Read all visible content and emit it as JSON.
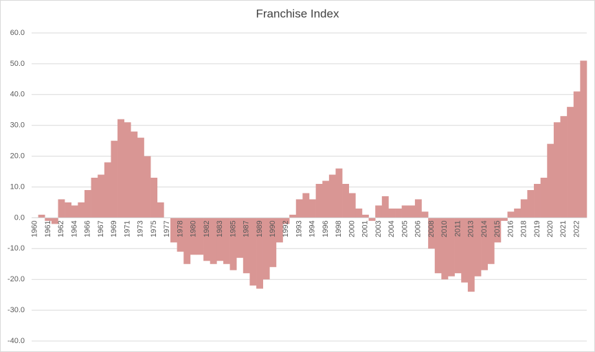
{
  "chart_data": {
    "type": "bar",
    "title": "Franchise Index",
    "categories": [
      "1960",
      null,
      "1961",
      null,
      "1962",
      null,
      "1964",
      null,
      "1966",
      null,
      "1967",
      null,
      "1969",
      null,
      "1971",
      null,
      "1973",
      null,
      "1975",
      null,
      "1977",
      null,
      "1978",
      null,
      "1980",
      null,
      "1982",
      null,
      "1983",
      null,
      "1985",
      null,
      "1987",
      null,
      "1989",
      null,
      "1990",
      null,
      "1992",
      null,
      "1993",
      null,
      "1994",
      null,
      "1996",
      null,
      "1998",
      null,
      "2000",
      null,
      "2001",
      null,
      "2003",
      null,
      "2004",
      null,
      "2005",
      null,
      "2006",
      null,
      "2008",
      null,
      "2010",
      null,
      "2011",
      null,
      "2013",
      null,
      "2014",
      null,
      "2015",
      null,
      "2016",
      null,
      "2018",
      null,
      "2019",
      null,
      "2020",
      null,
      "2021",
      null,
      "2022",
      null
    ],
    "values": [
      0,
      1,
      -1,
      -2,
      6,
      5,
      4,
      5,
      9,
      13,
      14,
      18,
      25,
      32,
      31,
      28,
      26,
      20,
      13,
      5,
      0,
      -8,
      -11,
      -15,
      -12,
      -12,
      -14,
      -15,
      -14,
      -15,
      -17,
      -13,
      -18,
      -22,
      -23,
      -20,
      -16,
      -8,
      -2,
      1,
      6,
      8,
      6,
      11,
      12,
      14,
      16,
      11,
      8,
      3,
      1,
      -1,
      4,
      7,
      3,
      3,
      4,
      4,
      6,
      2,
      -10,
      -18,
      -20,
      -19,
      -18,
      -21,
      -24,
      -19,
      -17,
      -15,
      -8,
      -1,
      2,
      3,
      6,
      9,
      11,
      13,
      24,
      31,
      33,
      36,
      41,
      51
    ],
    "color": "#d99694",
    "ylim": [
      -40,
      60
    ],
    "yticks": [
      {
        "value": -40,
        "label": "-40.0"
      },
      {
        "value": -30,
        "label": "-30.0"
      },
      {
        "value": -20,
        "label": "-20.0"
      },
      {
        "value": -10,
        "label": "-10.0"
      },
      {
        "value": 0,
        "label": "0.0"
      },
      {
        "value": 10,
        "label": "10.0"
      },
      {
        "value": 20,
        "label": "20.0"
      },
      {
        "value": 30,
        "label": "30.0"
      },
      {
        "value": 40,
        "label": "40.0"
      },
      {
        "value": 50,
        "label": "50.0"
      },
      {
        "value": 60,
        "label": "60.0"
      }
    ],
    "grid": true
  }
}
